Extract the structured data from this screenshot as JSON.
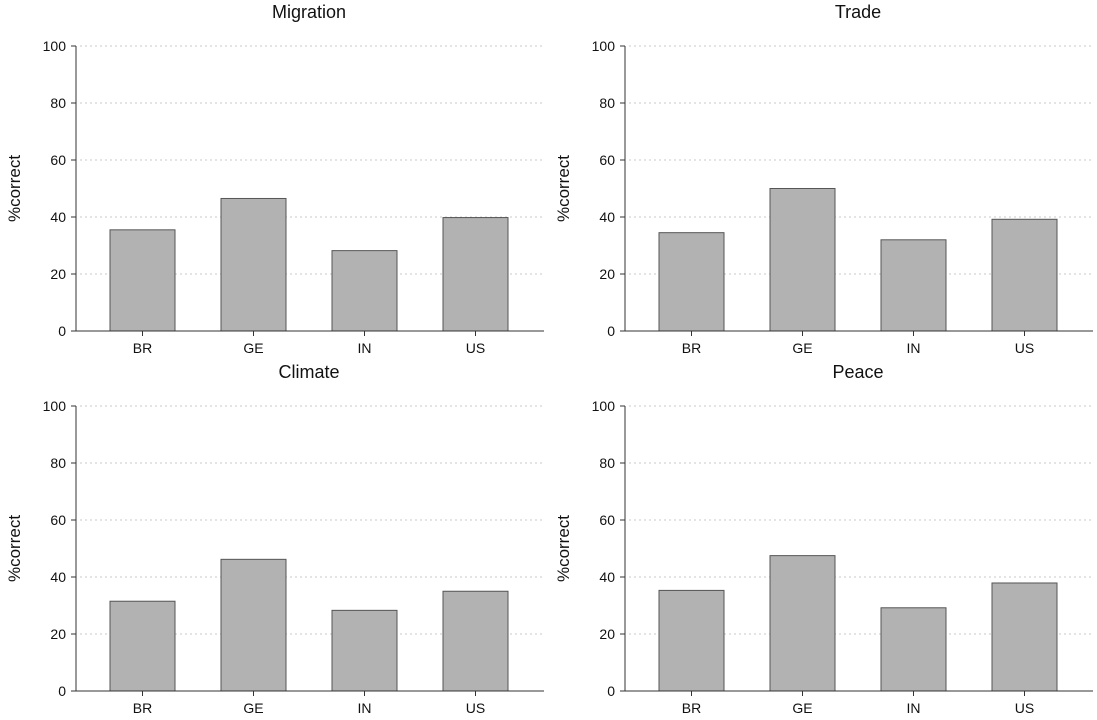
{
  "chart_data": [
    {
      "type": "bar",
      "title": "Migration",
      "ylabel": "%correct",
      "categories": [
        "BR",
        "GE",
        "IN",
        "US"
      ],
      "values": [
        35.5,
        46.5,
        28.2,
        39.8
      ],
      "ylim": [
        0,
        100
      ],
      "yticks": [
        "0",
        "20",
        "40",
        "60",
        "80",
        "100"
      ],
      "grid": true,
      "bar_color": "#b2b2b2"
    },
    {
      "type": "bar",
      "title": "Trade",
      "ylabel": "%correct",
      "categories": [
        "BR",
        "GE",
        "IN",
        "US"
      ],
      "values": [
        34.5,
        50.0,
        32.0,
        39.2
      ],
      "ylim": [
        0,
        100
      ],
      "yticks": [
        "0",
        "20",
        "40",
        "60",
        "80",
        "100"
      ],
      "grid": true,
      "bar_color": "#b2b2b2"
    },
    {
      "type": "bar",
      "title": "Climate",
      "ylabel": "%correct",
      "categories": [
        "BR",
        "GE",
        "IN",
        "US"
      ],
      "values": [
        31.5,
        46.2,
        28.3,
        35.0
      ],
      "ylim": [
        0,
        100
      ],
      "yticks": [
        "0",
        "20",
        "40",
        "60",
        "80",
        "100"
      ],
      "grid": true,
      "bar_color": "#b2b2b2"
    },
    {
      "type": "bar",
      "title": "Peace",
      "ylabel": "%correct",
      "categories": [
        "BR",
        "GE",
        "IN",
        "US"
      ],
      "values": [
        35.3,
        47.5,
        29.2,
        37.9
      ],
      "ylim": [
        0,
        100
      ],
      "yticks": [
        "0",
        "20",
        "40",
        "60",
        "80",
        "100"
      ],
      "grid": true,
      "bar_color": "#b2b2b2"
    }
  ]
}
